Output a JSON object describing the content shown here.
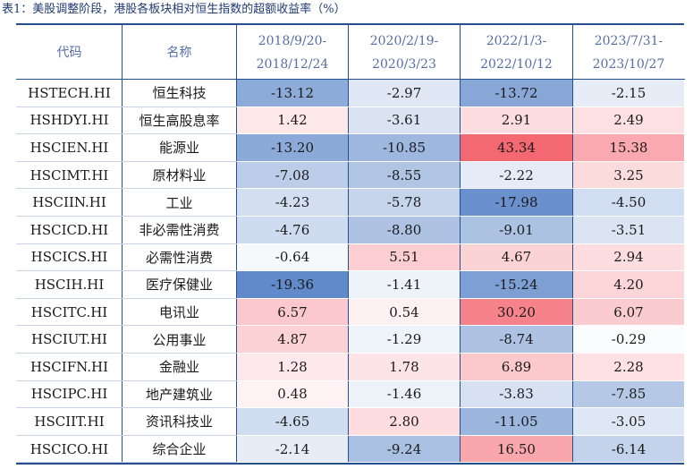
{
  "caption": "表1：美股调整阶段，港股各板块相对恒生指数的超额收益率（%）",
  "headers": {
    "code": "代码",
    "name": "名称",
    "periods": [
      {
        "start": "2018/9/20-",
        "end": "2018/12/24"
      },
      {
        "start": "2020/2/19-",
        "end": "2020/3/23"
      },
      {
        "start": "2022/1/3-",
        "end": "2022/10/12"
      },
      {
        "start": "2023/7/31-",
        "end": "2023/10/27"
      }
    ]
  },
  "rows": [
    {
      "code": "HSTECH.HI",
      "name": "恒生科技",
      "values": [
        "-13.12",
        "-2.97",
        "-13.72",
        "-2.15"
      ]
    },
    {
      "code": "HSHDYI.HI",
      "name": "恒生高股息率",
      "values": [
        "1.42",
        "-3.61",
        "2.91",
        "2.49"
      ]
    },
    {
      "code": "HSCIEN.HI",
      "name": "能源业",
      "values": [
        "-13.20",
        "-10.85",
        "43.34",
        "15.38"
      ]
    },
    {
      "code": "HSCIMT.HI",
      "name": "原材料业",
      "values": [
        "-7.08",
        "-8.55",
        "-2.22",
        "3.25"
      ]
    },
    {
      "code": "HSCIIN.HI",
      "name": "工业",
      "values": [
        "-4.23",
        "-5.78",
        "-17.98",
        "-4.50"
      ]
    },
    {
      "code": "HSCICD.HI",
      "name": "非必需性消费",
      "values": [
        "-4.76",
        "-8.80",
        "-9.01",
        "-3.51"
      ]
    },
    {
      "code": "HSCICS.HI",
      "name": "必需性消费",
      "values": [
        "-0.64",
        "5.51",
        "4.67",
        "2.94"
      ]
    },
    {
      "code": "HSCIH.HI",
      "name": "医疗保健业",
      "values": [
        "-19.36",
        "-1.41",
        "-15.24",
        "4.20"
      ]
    },
    {
      "code": "HSCITC.HI",
      "name": "电讯业",
      "values": [
        "6.57",
        "0.54",
        "30.20",
        "6.07"
      ]
    },
    {
      "code": "HSCIUT.HI",
      "name": "公用事业",
      "values": [
        "4.87",
        "-1.29",
        "-8.74",
        "-0.29"
      ]
    },
    {
      "code": "HSCIFN.HI",
      "name": "金融业",
      "values": [
        "1.28",
        "1.78",
        "6.89",
        "2.28"
      ]
    },
    {
      "code": "HSCIPC.HI",
      "name": "地产建筑业",
      "values": [
        "0.48",
        "-1.46",
        "-3.83",
        "-7.85"
      ]
    },
    {
      "code": "HSCIIT.HI",
      "name": "资讯科技业",
      "values": [
        "-4.65",
        "2.80",
        "-11.05",
        "-3.05"
      ]
    },
    {
      "code": "HSCICO.HI",
      "name": "综合企业",
      "values": [
        "-2.14",
        "-9.24",
        "16.50",
        "-6.14"
      ]
    }
  ],
  "colors": {
    "negative_max": "#5b86c8",
    "neutral": "#ffffff",
    "positive_max": "#f4636d",
    "header_text": "#556fa6",
    "rule": "#244f8c"
  }
}
